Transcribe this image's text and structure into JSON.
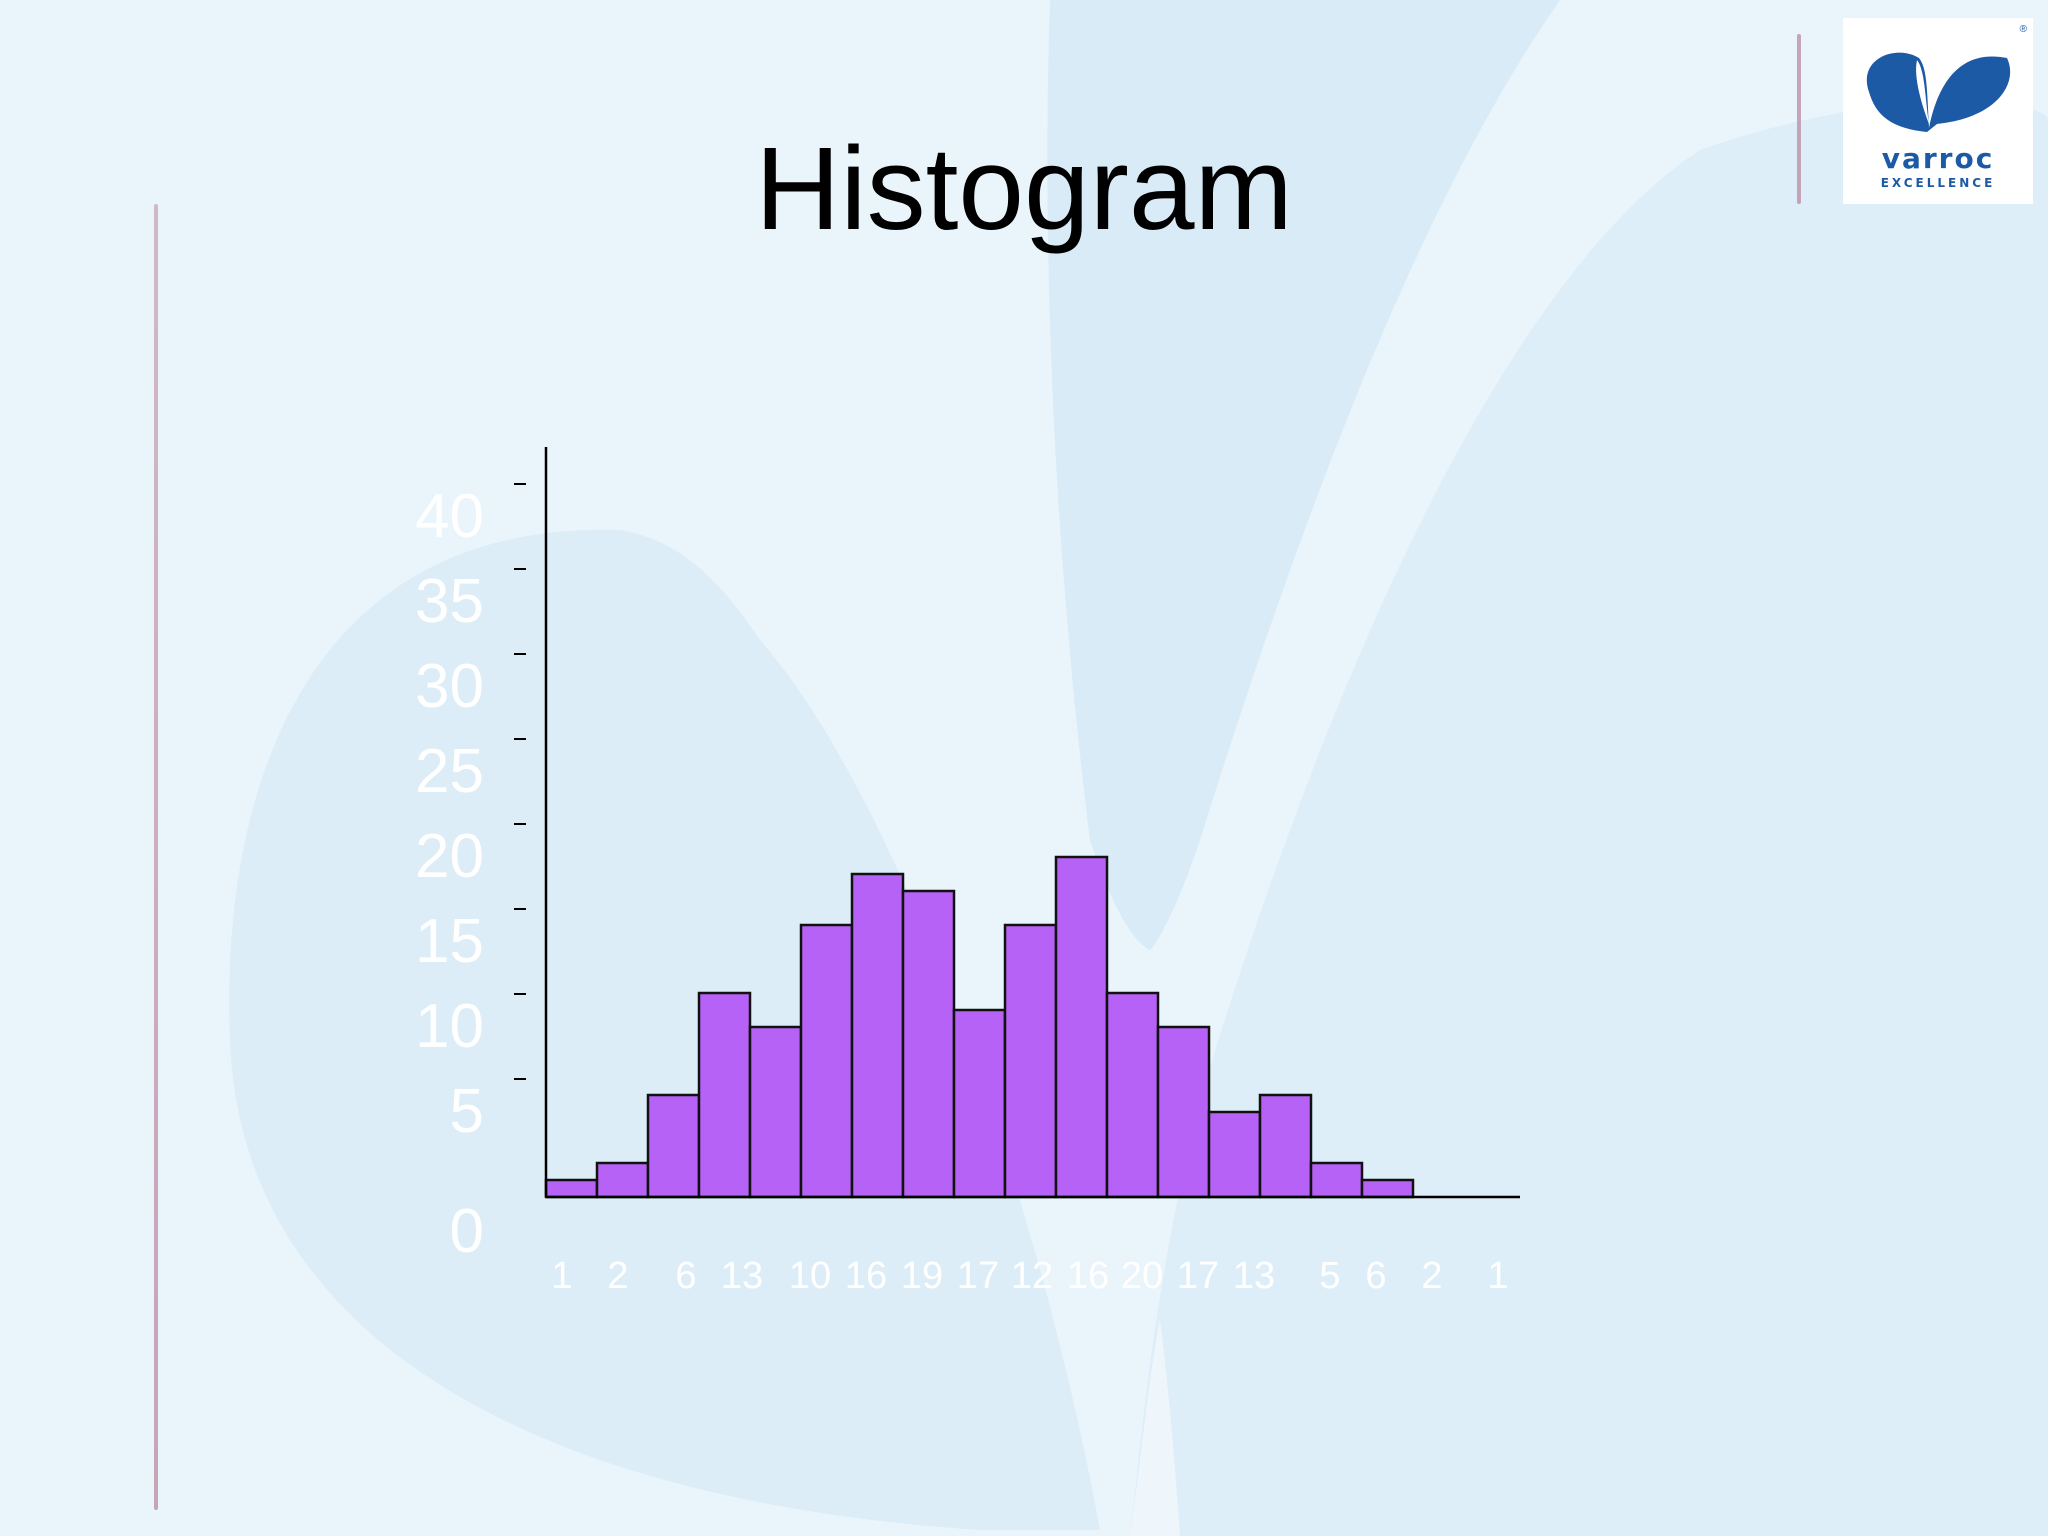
{
  "slide": {
    "title": "Histogram"
  },
  "logo": {
    "wordmark": "varroc",
    "tagline": "EXCELLENCE",
    "registered": "®",
    "brand_color": "#1d5aa6"
  },
  "colors": {
    "bar_fill": "#b762f6",
    "bar_stroke": "#111111",
    "axis": "#000000",
    "tick_label": "#ffffff"
  },
  "chart_data": {
    "type": "bar",
    "title": "",
    "xlabel": "",
    "ylabel": "",
    "ylim": [
      0,
      40
    ],
    "yticks": [
      0,
      5,
      10,
      15,
      20,
      25,
      30,
      35,
      40
    ],
    "categories": [
      "1",
      "2",
      "6",
      "13",
      "10",
      "16",
      "19",
      "17",
      "12",
      "16",
      "20",
      "17",
      "13",
      "5",
      "6",
      "2",
      "1"
    ],
    "values": [
      1,
      2,
      6,
      12,
      10,
      16,
      19,
      18,
      11,
      16,
      20,
      12,
      10,
      5,
      6,
      2,
      1
    ],
    "grid": false,
    "legend": "none"
  }
}
